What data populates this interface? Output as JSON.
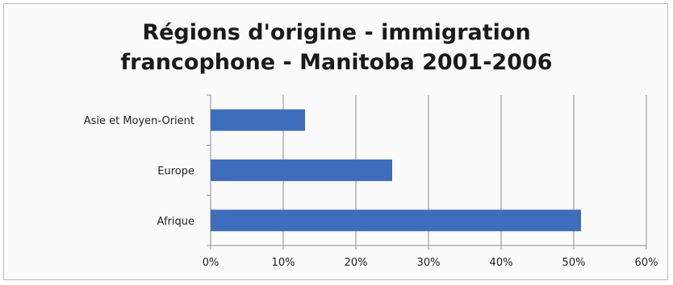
{
  "chart_data": {
    "type": "bar",
    "orientation": "horizontal",
    "title_lines": [
      "Régions d'origine - immigration",
      "francophone - Manitoba 2001-2006"
    ],
    "categories": [
      "Asie et Moyen-Orient",
      "Europe",
      "Afrique"
    ],
    "values": [
      13,
      25,
      51
    ],
    "xlim": [
      0,
      60
    ],
    "xticks": [
      "0%",
      "10%",
      "20%",
      "30%",
      "40%",
      "50%",
      "60%"
    ],
    "grid": true,
    "legend": "none",
    "bar_color": "#3f6dbd"
  }
}
